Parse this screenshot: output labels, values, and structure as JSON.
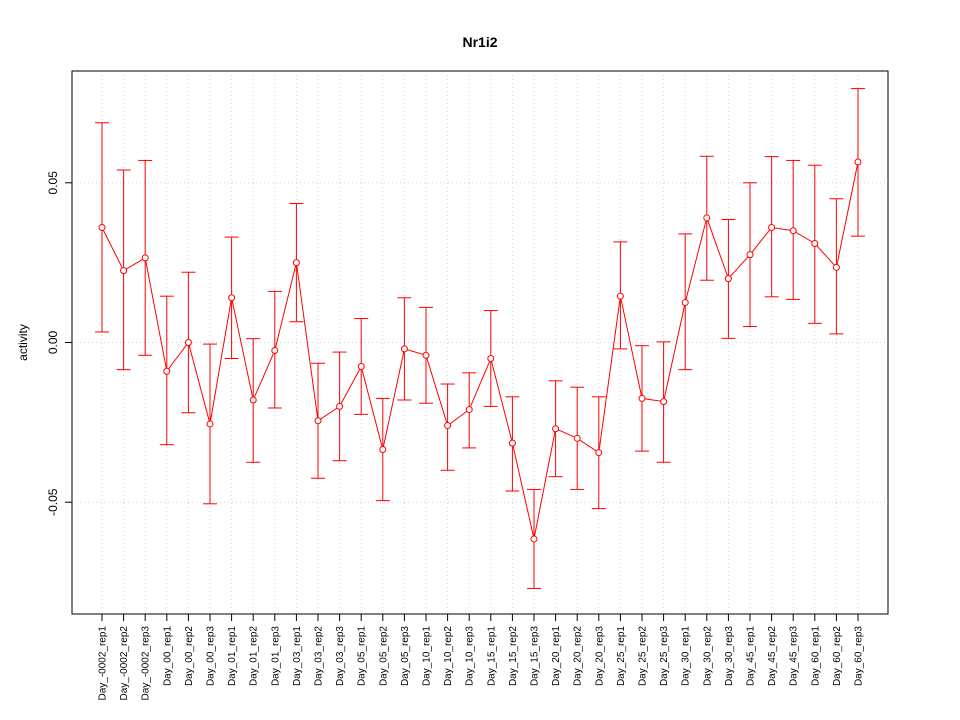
{
  "chart_data": {
    "type": "line",
    "title": "Nr1i2",
    "xlabel": "",
    "ylabel": "activity",
    "ylim": [
      -0.085,
      0.085
    ],
    "yticks": [
      -0.05,
      0.0,
      0.05
    ],
    "ytick_labels": [
      "-0.05",
      "0.00",
      "0.05"
    ],
    "grid": true,
    "color": "#ff0000",
    "categories": [
      "Day_-0002_rep1",
      "Day_-0002_rep2",
      "Day_-0002_rep3",
      "Day_00_rep1",
      "Day_00_rep2",
      "Day_00_rep3",
      "Day_01_rep1",
      "Day_01_rep2",
      "Day_01_rep3",
      "Day_03_rep1",
      "Day_03_rep2",
      "Day_03_rep3",
      "Day_05_rep1",
      "Day_05_rep2",
      "Day_05_rep3",
      "Day_10_rep1",
      "Day_10_rep2",
      "Day_10_rep3",
      "Day_15_rep1",
      "Day_15_rep2",
      "Day_15_rep3",
      "Day_20_rep1",
      "Day_20_rep2",
      "Day_20_rep3",
      "Day_25_rep1",
      "Day_25_rep2",
      "Day_25_rep3",
      "Day_30_rep1",
      "Day_30_rep2",
      "Day_30_rep3",
      "Day_45_rep1",
      "Day_45_rep2",
      "Day_45_rep3",
      "Day_60_rep1",
      "Day_60_rep2",
      "Day_60_rep3"
    ],
    "values": [
      0.036,
      0.0225,
      0.0265,
      -0.009,
      0.0,
      -0.0255,
      0.014,
      -0.018,
      -0.0025,
      0.025,
      -0.0245,
      -0.02,
      -0.0075,
      -0.0335,
      -0.002,
      -0.004,
      -0.026,
      -0.021,
      -0.005,
      -0.0315,
      -0.0615,
      -0.027,
      -0.03,
      -0.0345,
      0.0145,
      -0.0175,
      -0.0185,
      0.0125,
      0.039,
      0.02,
      0.0275,
      0.036,
      0.035,
      0.031,
      0.0235,
      0.0565
    ],
    "lower": [
      0.0033,
      -0.0085,
      -0.004,
      -0.032,
      -0.022,
      -0.0505,
      -0.005,
      -0.0375,
      -0.0205,
      0.0065,
      -0.0425,
      -0.037,
      -0.0225,
      -0.0495,
      -0.018,
      -0.019,
      -0.04,
      -0.033,
      -0.02,
      -0.0465,
      -0.077,
      -0.042,
      -0.046,
      -0.052,
      -0.002,
      -0.034,
      -0.0375,
      -0.0085,
      0.0195,
      0.0013,
      0.005,
      0.0143,
      0.0135,
      0.006,
      0.0027,
      0.0333
    ],
    "upper": [
      0.0688,
      0.054,
      0.057,
      0.0145,
      0.022,
      -0.0005,
      0.033,
      0.0012,
      0.016,
      0.0435,
      -0.0065,
      -0.003,
      0.0075,
      -0.0175,
      0.014,
      0.011,
      -0.013,
      -0.0095,
      0.01,
      -0.017,
      -0.046,
      -0.012,
      -0.014,
      -0.017,
      0.0315,
      -0.001,
      0.0002,
      0.034,
      0.0583,
      0.0385,
      0.05,
      0.0582,
      0.057,
      0.0555,
      0.045,
      0.0795
    ]
  }
}
